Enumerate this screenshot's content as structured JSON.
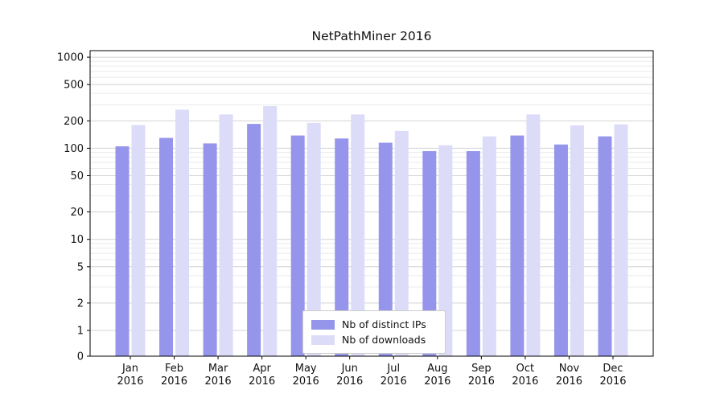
{
  "chart_data": {
    "type": "bar",
    "title": "NetPathMiner 2016",
    "year_label": "2016",
    "categories": [
      "Jan",
      "Feb",
      "Mar",
      "Apr",
      "May",
      "Jun",
      "Jul",
      "Aug",
      "Sep",
      "Oct",
      "Nov",
      "Dec"
    ],
    "series": [
      {
        "name": "Nb of distinct IPs",
        "color": "#9595ec",
        "values": [
          105,
          130,
          113,
          185,
          138,
          128,
          115,
          93,
          93,
          138,
          110,
          135
        ]
      },
      {
        "name": "Nb of downloads",
        "color": "#dcdcf8",
        "values": [
          180,
          265,
          235,
          290,
          190,
          235,
          155,
          108,
          135,
          235,
          178,
          183
        ]
      }
    ],
    "y_ticks": [
      0,
      1,
      2,
      5,
      10,
      20,
      50,
      100,
      200,
      500,
      1000
    ],
    "y_minor_ticks": [
      3,
      4,
      6,
      7,
      8,
      9,
      30,
      40,
      60,
      70,
      80,
      90,
      300,
      400,
      600,
      700,
      800,
      900
    ],
    "y_scale": "symlog",
    "ylim": [
      0,
      1000
    ],
    "grid": "on",
    "legend_position": "lower center",
    "colors": {
      "grid_major": "#d3d3d3",
      "grid_minor": "#ebebeb",
      "spine": "#000000",
      "tick_text": "#111111"
    }
  }
}
